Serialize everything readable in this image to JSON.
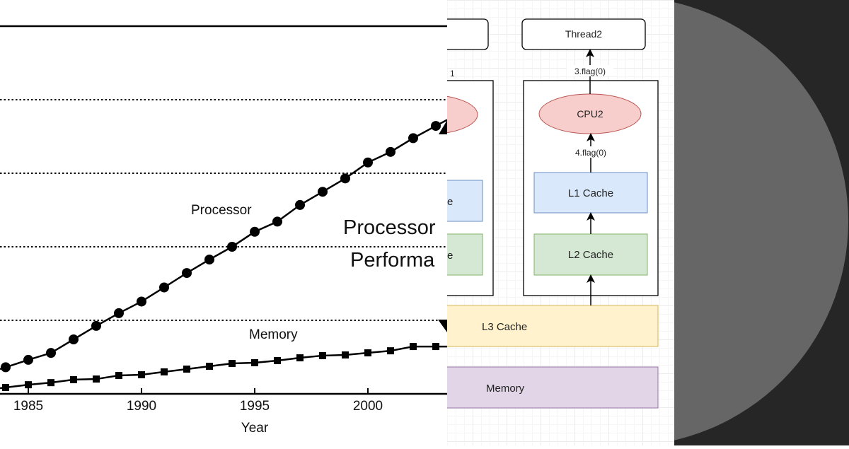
{
  "chart_data": {
    "type": "line",
    "xlabel": "Year",
    "ylabel": "",
    "x_ticks": [
      "1985",
      "1990",
      "1995",
      "2000"
    ],
    "x_tick_values": [
      1985,
      1990,
      1995,
      2000
    ],
    "xlim": [
      1983.75,
      2003.5
    ],
    "ylim": [
      1,
      100000
    ],
    "y_scale": "log",
    "grid": "dotted horizontal lines at each decade",
    "annotations": [
      "Processor",
      "Memory"
    ],
    "overlay_title_lines": [
      "Processor",
      "Performa"
    ],
    "x": [
      1984,
      1985,
      1986,
      1987,
      1988,
      1989,
      1990,
      1991,
      1992,
      1993,
      1994,
      1995,
      1996,
      1997,
      1998,
      1999,
      2000,
      2001,
      2002,
      2003
    ],
    "series": [
      {
        "name": "Processor",
        "marker": "circle",
        "values": [
          2.3,
          2.9,
          3.6,
          5.5,
          8.4,
          12.5,
          18,
          28,
          44,
          67,
          100,
          160,
          220,
          370,
          560,
          850,
          1400,
          1950,
          3000,
          4400
        ]
      },
      {
        "name": "Memory",
        "marker": "square",
        "values": [
          1.22,
          1.33,
          1.42,
          1.56,
          1.59,
          1.78,
          1.82,
          1.99,
          2.17,
          2.37,
          2.59,
          2.65,
          2.83,
          3.09,
          3.31,
          3.38,
          3.61,
          3.85,
          4.4,
          4.4
        ]
      }
    ]
  },
  "diagram": {
    "thread2": "Thread2",
    "cpu2": "CPU2",
    "edge_cpu_thread": "3.flag(0)",
    "edge_l1_cpu": "4.flag(0)",
    "l1": "L1 Cache",
    "l2": "L2 Cache",
    "l3": "L3 Cache",
    "memory": "Memory",
    "left_partial_label": "1",
    "left_partial_l1": "e",
    "left_partial_l2": "e",
    "colors": {
      "cpu_fill": "#f8cecc",
      "cpu_stroke": "#b85450",
      "l1_fill": "#dae8fc",
      "l1_stroke": "#6c8ebf",
      "l2_fill": "#d5e8d4",
      "l2_stroke": "#82b366",
      "l3_fill": "#fff2cc",
      "l3_stroke": "#d6b656",
      "mem_fill": "#e1d5e7",
      "mem_stroke": "#9673a6"
    }
  },
  "decor": {
    "dark_bg": "#262626",
    "circle": "#666666"
  }
}
